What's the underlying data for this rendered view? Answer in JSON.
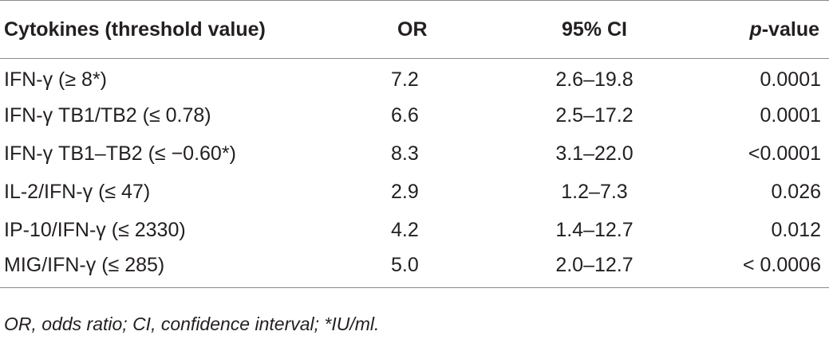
{
  "table": {
    "headers": {
      "cytokines": "Cytokines (threshold value)",
      "or": "OR",
      "ci": "95% CI",
      "p_italic": "p",
      "p_rest": "-value"
    },
    "rows": [
      {
        "label": "IFN-γ (≥ 8*)",
        "or": "7.2",
        "ci": "2.6–19.8",
        "p": "0.0001"
      },
      {
        "label": "IFN-γ TB1/TB2 (≤ 0.78)",
        "or": "6.6",
        "ci": "2.5–17.2",
        "p": "0.0001"
      },
      {
        "label": "IFN-γ TB1–TB2 (≤ −0.60*)",
        "or": "8.3",
        "ci": "3.1–22.0",
        "p": "<0.0001"
      },
      {
        "label": "IL-2/IFN-γ (≤ 47)",
        "or": "2.9",
        "ci": "1.2–7.3",
        "p": "0.026"
      },
      {
        "label": "IP-10/IFN-γ (≤ 2330)",
        "or": "4.2",
        "ci": "1.4–12.7",
        "p": "0.012"
      },
      {
        "label": "MIG/IFN-γ (≤ 285)",
        "or": "5.0",
        "ci": "2.0–12.7",
        "p": "< 0.0006"
      }
    ]
  },
  "footnote": "OR, odds ratio; CI, confidence interval; *IU/ml."
}
